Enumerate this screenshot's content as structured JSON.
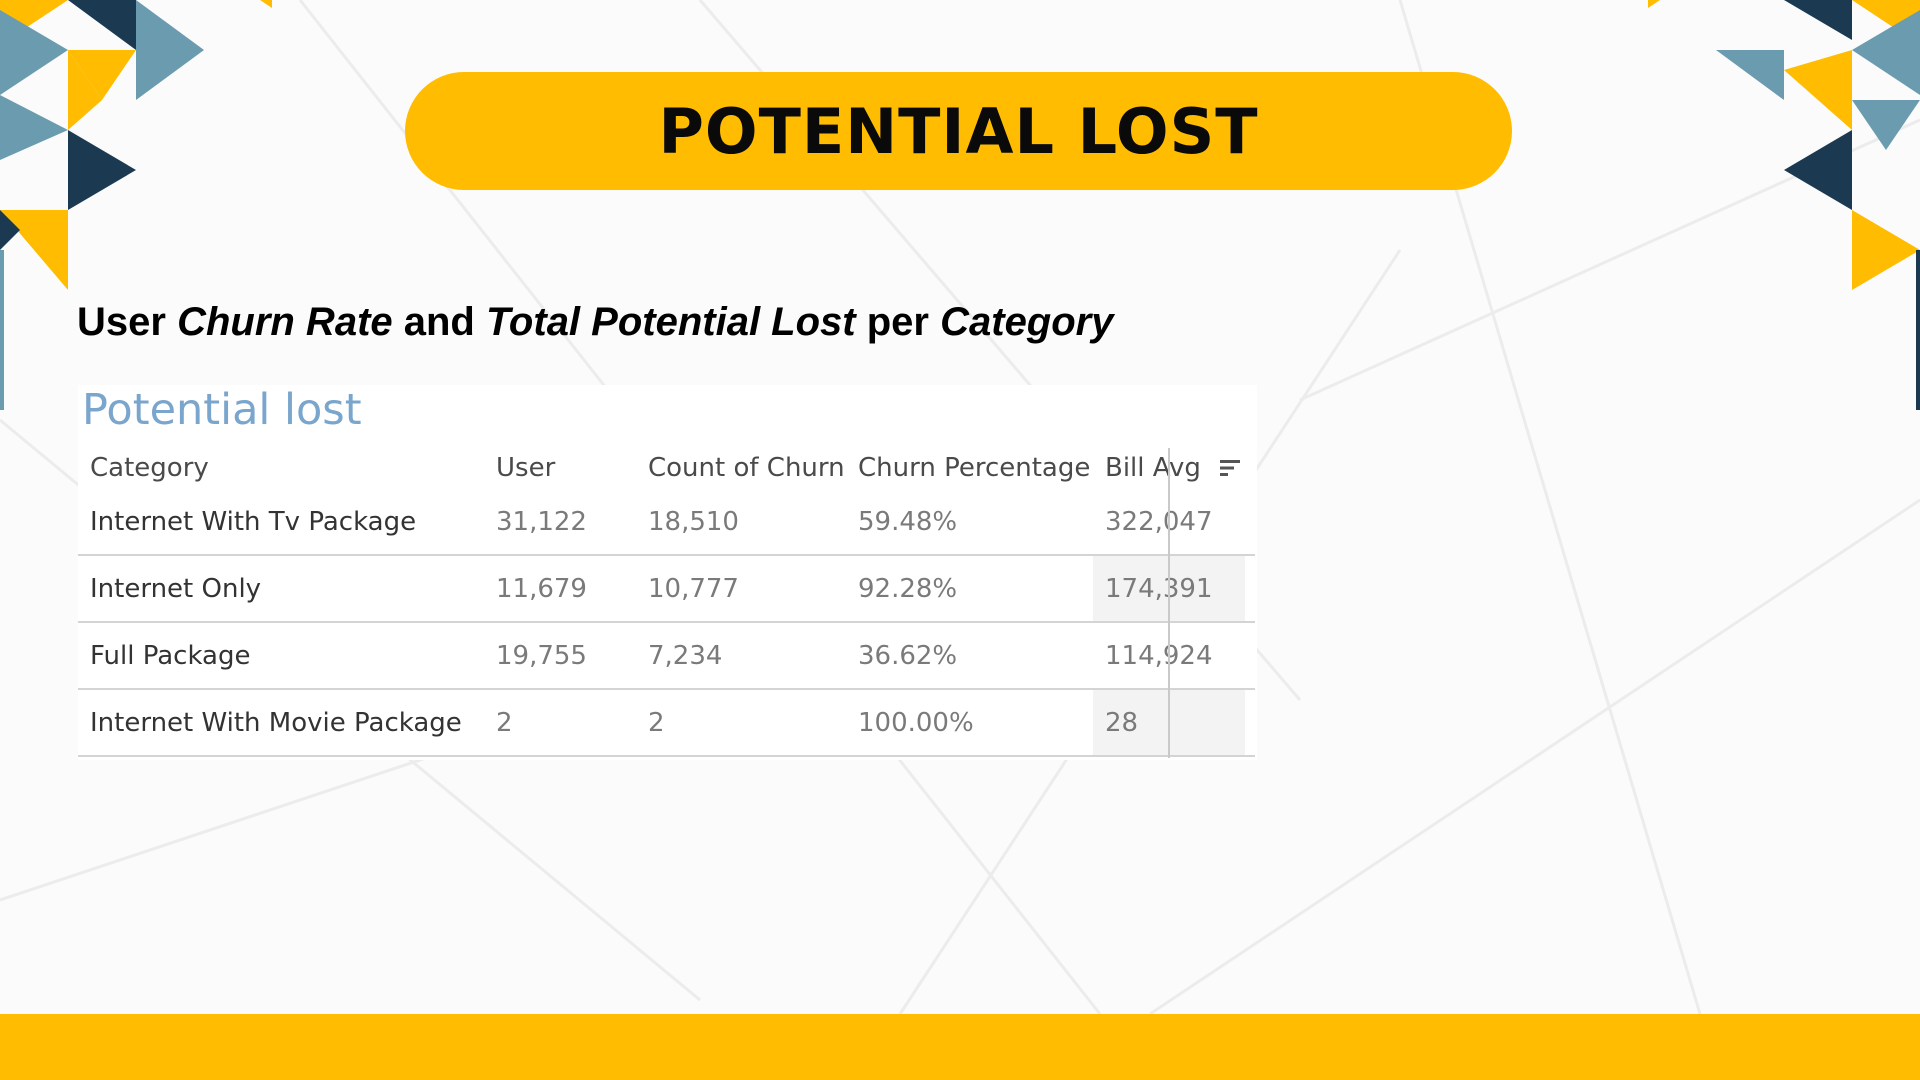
{
  "slide": {
    "title": "POTENTIAL LOST",
    "subtitle": {
      "p1": "User ",
      "p2": "Churn Rate",
      "p3": " and ",
      "p4": "Total Potential Lost",
      "p5": " per ",
      "p6": "Category"
    }
  },
  "colors": {
    "accent": "#FFBC00",
    "teal": "#6A9BAF",
    "navy": "#1B3A52",
    "panel_title": "#7AA5CC"
  },
  "table": {
    "title": "Potential lost",
    "columns": [
      "Category",
      "User",
      "Count of Churn",
      "Churn Percentage",
      "Bill Avg"
    ],
    "sort_icon": "sort-descending-icon",
    "rows": [
      [
        "Internet With Tv Package",
        "31,122",
        "18,510",
        "59.48%",
        "322,047"
      ],
      [
        "Internet Only",
        "11,679",
        "10,777",
        "92.28%",
        "174,391"
      ],
      [
        "Full Package",
        "19,755",
        "7,234",
        "36.62%",
        "114,924"
      ],
      [
        "Internet With Movie Package",
        "2",
        "2",
        "100.00%",
        "28"
      ]
    ]
  }
}
